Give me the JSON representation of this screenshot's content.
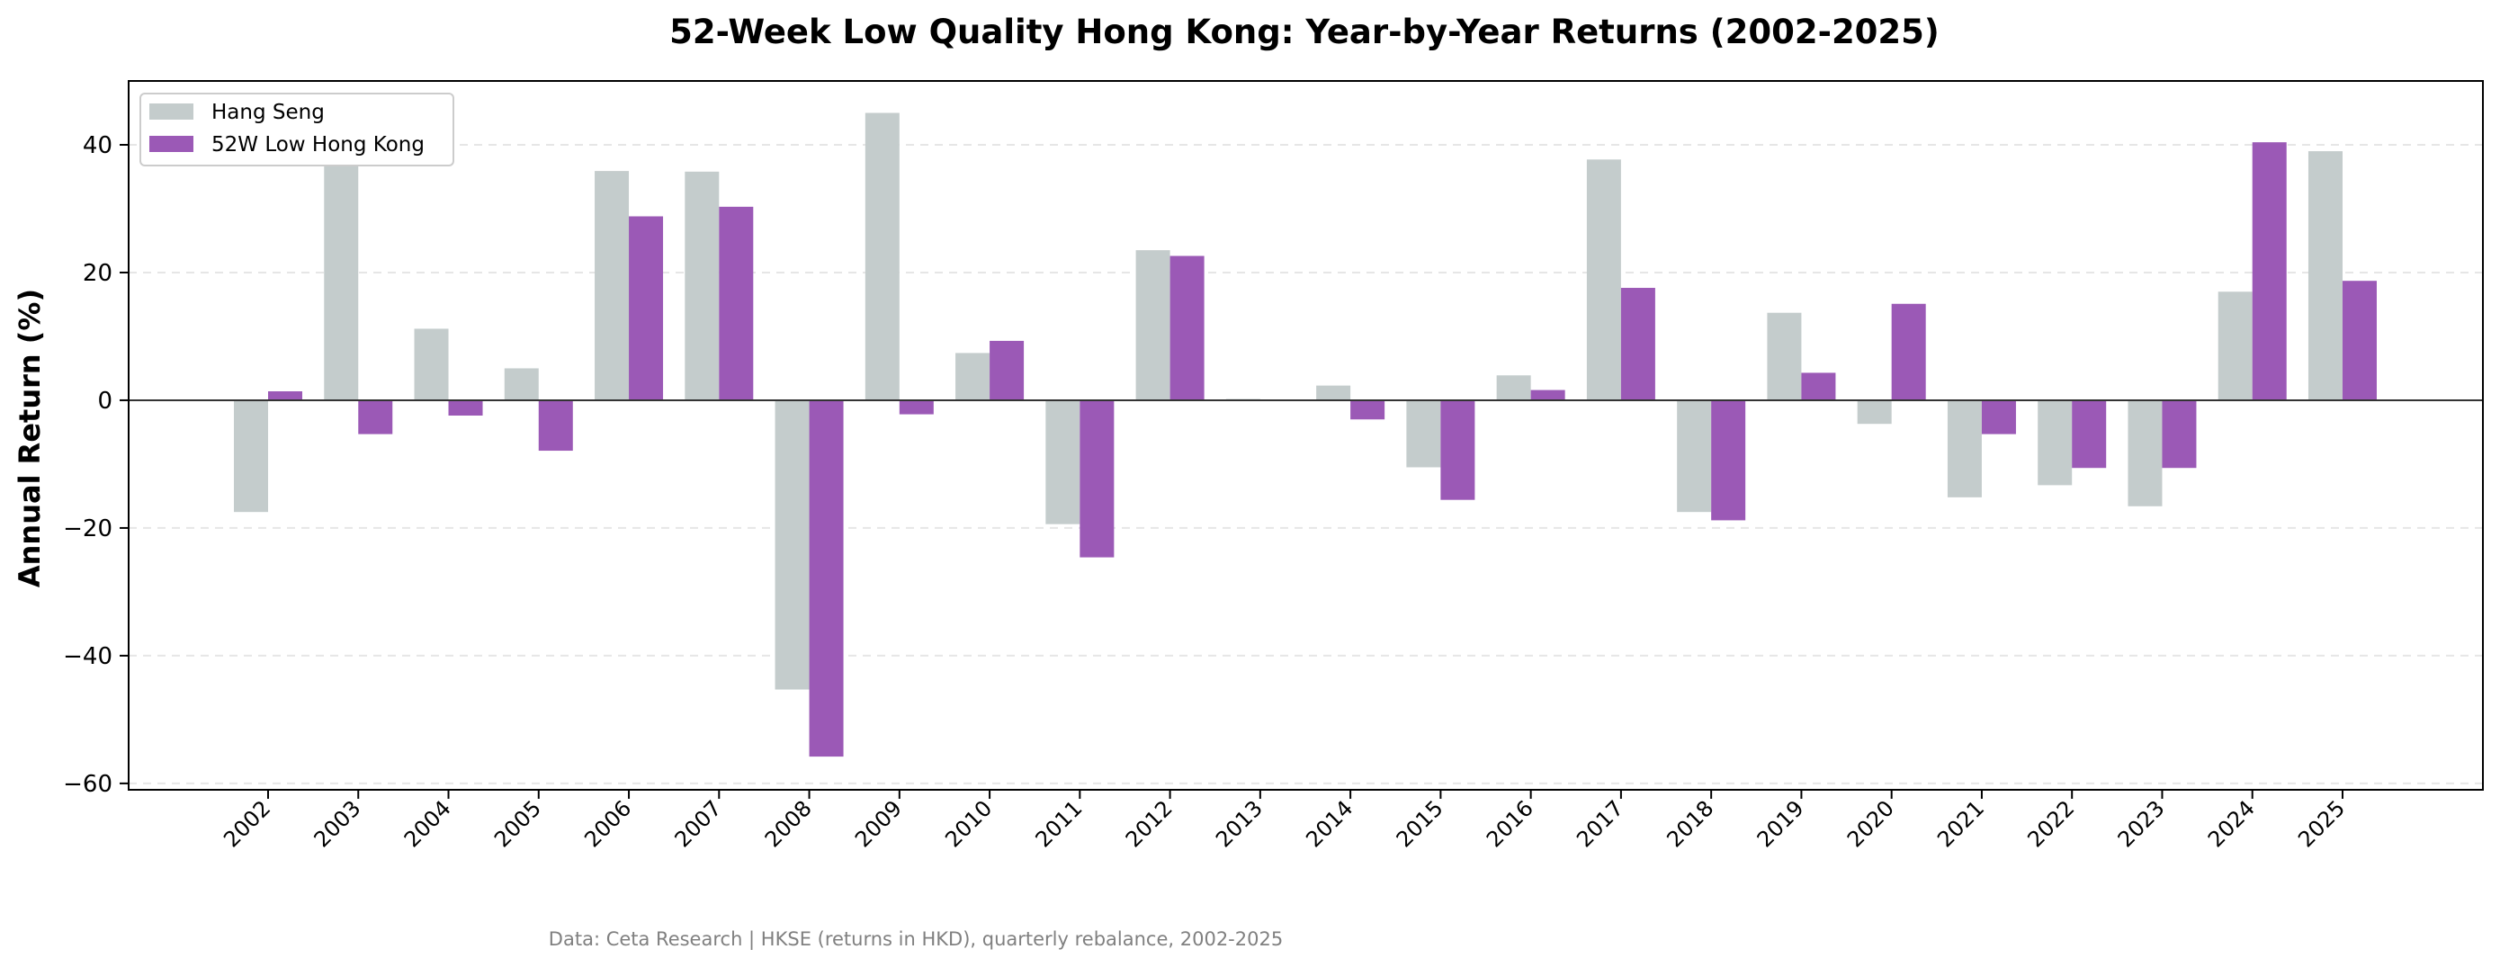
{
  "chart_data": {
    "type": "bar",
    "title": "52-Week Low Quality Hong Kong: Year-by-Year Returns (2002-2025)",
    "xlabel": "",
    "ylabel": "Annual Return (%)",
    "ylim": [
      -61,
      50
    ],
    "yticks": [
      -60,
      -40,
      -20,
      0,
      20,
      40
    ],
    "grid": "y-dashed",
    "legend_position": "top-left",
    "categories": [
      "2002",
      "2003",
      "2004",
      "2005",
      "2006",
      "2007",
      "2008",
      "2009",
      "2010",
      "2011",
      "2012",
      "2013",
      "2014",
      "2015",
      "2016",
      "2017",
      "2018",
      "2019",
      "2020",
      "2021",
      "2022",
      "2023",
      "2024",
      "2025"
    ],
    "series": [
      {
        "name": "Hang Seng",
        "color": "#c4cccc",
        "values": [
          -17.5,
          36.9,
          11.2,
          5.0,
          35.9,
          35.8,
          -45.3,
          45.0,
          7.4,
          -19.4,
          23.5,
          0.2,
          2.3,
          -10.5,
          3.9,
          37.7,
          -17.5,
          13.7,
          -3.7,
          -15.2,
          -13.3,
          -16.6,
          17.0,
          39.0
        ]
      },
      {
        "name": "52W Low Hong Kong",
        "color": "#9b59b6",
        "values": [
          1.4,
          -5.3,
          -2.4,
          -7.9,
          28.8,
          30.3,
          -55.8,
          -2.2,
          9.3,
          -24.6,
          22.6,
          0.0,
          -3.0,
          -15.6,
          1.6,
          17.6,
          -18.8,
          4.3,
          15.1,
          -5.3,
          -10.6,
          -10.6,
          40.4,
          18.7
        ]
      }
    ],
    "footer": "Data: Ceta Research | HKSE (returns in HKD), quarterly rebalance, 2002-2025"
  }
}
